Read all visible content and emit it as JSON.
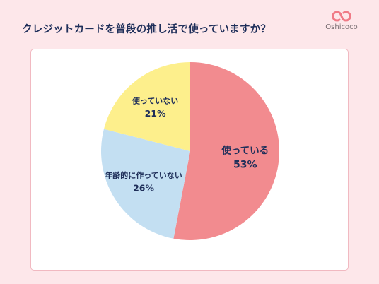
{
  "header": {
    "title": "クレジットカードを普段の推し活で使っていますか？",
    "logo_text": "Oshicoco"
  },
  "chart_data": {
    "type": "pie",
    "title": "クレジットカードを普段の推し活で使っていますか？",
    "start_angle_deg": 0,
    "direction": "clockwise",
    "slices": [
      {
        "label": "使っている",
        "value": 53,
        "value_text": "53%",
        "color": "#f28b8f"
      },
      {
        "label": "年齢的に作っていない",
        "value": 26,
        "value_text": "26%",
        "color": "#c3dff2"
      },
      {
        "label": "使っていない",
        "value": 21,
        "value_text": "21%",
        "color": "#fdef8c"
      }
    ]
  },
  "colors": {
    "background": "#fde7ea",
    "card_border": "#f1b9c1",
    "text": "#1f2f5a",
    "logo": "#f07a86"
  }
}
